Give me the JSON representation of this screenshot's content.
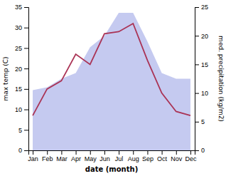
{
  "chart_data": {
    "type": "line",
    "xlabel": "date (month)",
    "ylabel": "max temp (C)",
    "y2label": "med. precipitation (kg/m2)",
    "categories": [
      "Jan",
      "Feb",
      "Mar",
      "Apr",
      "May",
      "Jun",
      "Jul",
      "Aug",
      "Sep",
      "Oct",
      "Nov",
      "Dec"
    ],
    "series": [
      {
        "type": "area",
        "axis": "y2",
        "color": "#c5caf0",
        "values": [
          10.5,
          11.0,
          12.5,
          13.5,
          18.0,
          20.0,
          24.0,
          24.0,
          19.0,
          13.5,
          12.5,
          12.5
        ]
      },
      {
        "type": "line",
        "color": "#aa3355",
        "values": [
          8.5,
          15.0,
          17.0,
          23.5,
          21.0,
          28.5,
          29.0,
          31.0,
          22.0,
          14.0,
          9.5,
          8.5
        ]
      }
    ],
    "ylim": [
      0,
      35
    ],
    "yticks": [
      0,
      5,
      10,
      15,
      20,
      25,
      30,
      35
    ],
    "y2lim": [
      0,
      25
    ],
    "y2ticks": [
      0,
      5,
      10,
      15,
      20,
      25
    ],
    "grid": false
  }
}
